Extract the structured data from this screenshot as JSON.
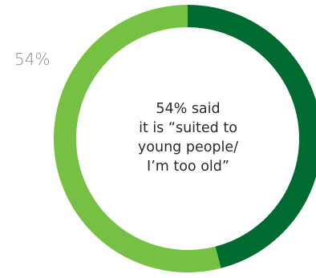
{
  "chart_data": {
    "type": "pie",
    "donut": true,
    "slices": [
      {
        "label": "54%",
        "value": 54,
        "color": "#76c043"
      },
      {
        "value": 46,
        "color": "#006b31"
      }
    ],
    "outside_label": "54%",
    "center_text": [
      "54% said",
      "it is “suited to",
      "young people/",
      "I’m too old”"
    ]
  }
}
